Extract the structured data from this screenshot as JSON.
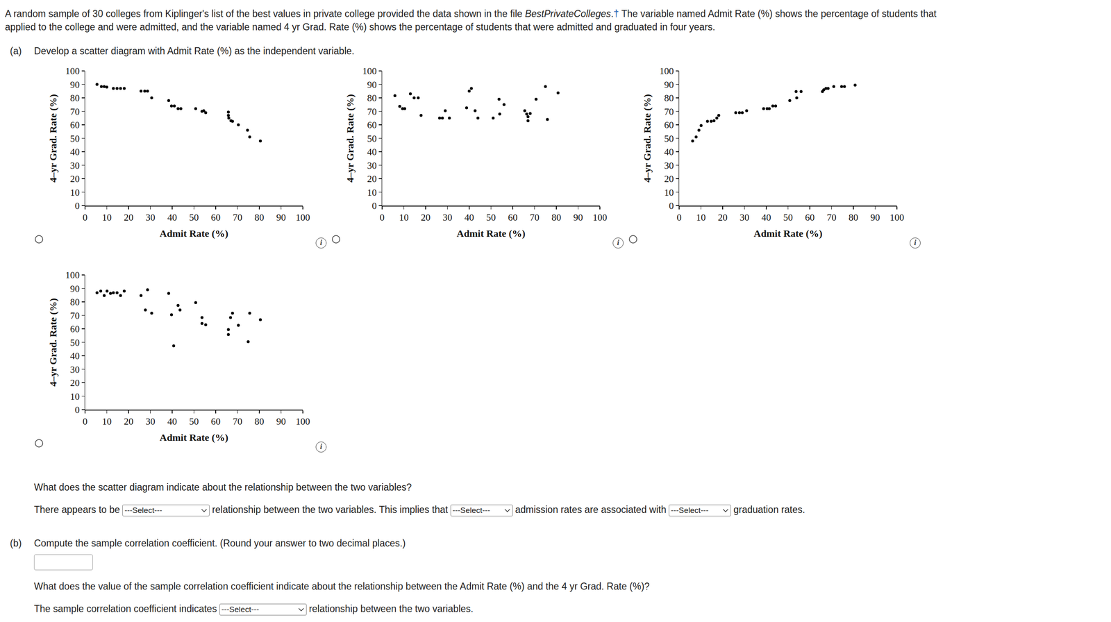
{
  "intro": {
    "line1_before": "A random sample of 30 colleges from Kiplinger's list of the best values in private college provided the data shown in the file ",
    "file": "BestPrivateColleges",
    "period": ".",
    "dagger": "†",
    "line1_after": " The variable named Admit Rate (%) shows the percentage of students that",
    "line2": "applied to the college and were admitted, and the variable named 4 yr Grad. Rate (%) shows the percentage of students that were admitted and graduated in four years."
  },
  "part_a": {
    "label": "(a)",
    "prompt": "Develop a scatter diagram with Admit Rate (%) as the independent variable.",
    "question": "What does the scatter diagram indicate about the relationship between the two variables?",
    "answer_parts": [
      "There appears to be",
      "relationship between the two variables. This implies that",
      "admission rates are associated with",
      "graduation rates."
    ]
  },
  "part_b": {
    "label": "(b)",
    "prompt": "Compute the sample correlation coefficient. (Round your answer to two decimal places.)",
    "question": "What does the value of the sample correlation coefficient indicate about the relationship between the Admit Rate (%) and the 4 yr Grad. Rate (%)?",
    "answer_parts": [
      "The sample correlation coefficient indicates",
      "relationship between the two variables."
    ]
  },
  "select_placeholder": "---Select---",
  "info_icon": "i",
  "chart_data": [
    {
      "type": "scatter",
      "x_label": "Admit Rate (%)",
      "y_label": "4–yr Grad. Rate (%)",
      "x": [
        5.5,
        7.5,
        8.8,
        10,
        13,
        14.7,
        16.3,
        18,
        25.7,
        27.4,
        28.7,
        30.6,
        38.4,
        39.7,
        41,
        42.7,
        44,
        50.8,
        53.7,
        54.5,
        55.4,
        65.8,
        65.8,
        66,
        67,
        67.7,
        70.4,
        74.6,
        75.6,
        80.5
      ],
      "values": [
        90,
        88.4,
        88.4,
        88,
        87,
        87,
        87,
        87,
        85,
        85,
        85,
        80,
        78,
        74,
        74,
        72,
        72,
        72,
        70,
        70.5,
        69,
        69.5,
        67,
        65,
        63,
        62.6,
        60,
        56,
        51,
        48
      ],
      "xlim": [
        0,
        100
      ],
      "ylim": [
        0,
        100
      ],
      "xticks": [
        0,
        10,
        20,
        30,
        40,
        50,
        60,
        70,
        80,
        90,
        100
      ],
      "yticks": [
        0,
        10,
        20,
        30,
        40,
        50,
        60,
        70,
        80,
        90,
        100
      ],
      "color": "#000000",
      "marker": "circle",
      "grid": false
    },
    {
      "type": "scatter",
      "x_label": "Admit Rate (%)",
      "y_label": "4–yr Grad. Rate (%)",
      "x": [
        5.9,
        8.1,
        9.4,
        10.4,
        13,
        14.7,
        16.6,
        17.9,
        26.4,
        27.7,
        29,
        30.9,
        38.8,
        40,
        41,
        42.7,
        44,
        51,
        53.7,
        54,
        56,
        65.5,
        66.4,
        67,
        67,
        68,
        70.7,
        75,
        75.9,
        80.8
      ],
      "values": [
        81.6,
        73.7,
        72,
        72,
        83,
        80,
        80,
        67,
        65,
        65,
        70.5,
        65,
        72.6,
        85,
        87,
        70.5,
        65,
        65,
        79,
        68,
        75,
        70.5,
        68,
        63,
        66,
        68.4,
        79,
        88.4,
        64,
        83.7
      ],
      "xlim": [
        0,
        100
      ],
      "ylim": [
        0,
        100
      ],
      "xticks": [
        0,
        10,
        20,
        30,
        40,
        50,
        60,
        70,
        80,
        90,
        100
      ],
      "yticks": [
        0,
        10,
        20,
        30,
        40,
        50,
        60,
        70,
        80,
        90,
        100
      ],
      "color": "#000000",
      "marker": "circle",
      "grid": false
    },
    {
      "type": "scatter",
      "x_label": "Admit Rate (%)",
      "y_label": "4–yr Grad. Rate (%)",
      "x": [
        6.2,
        7.8,
        9.1,
        10.1,
        13,
        14.7,
        16,
        17.3,
        18.2,
        26,
        27.7,
        29,
        31,
        38.8,
        40.4,
        41.4,
        43,
        44.3,
        50.8,
        54,
        53.7,
        56,
        65.8,
        66.4,
        67.4,
        68.4,
        71,
        74.6,
        75.9,
        80.8
      ],
      "values": [
        48,
        51,
        56,
        59.5,
        62.6,
        62.6,
        63,
        65,
        67,
        69,
        69,
        69,
        70.5,
        72,
        72,
        72,
        74,
        74,
        78,
        80,
        84.7,
        84.7,
        84.7,
        86,
        87,
        87,
        88.4,
        88.4,
        88.4,
        89.5
      ],
      "xlim": [
        0,
        100
      ],
      "ylim": [
        0,
        100
      ],
      "xticks": [
        0,
        10,
        20,
        30,
        40,
        50,
        60,
        70,
        80,
        90,
        100
      ],
      "yticks": [
        0,
        10,
        20,
        30,
        40,
        50,
        60,
        70,
        80,
        90,
        100
      ],
      "color": "#000000",
      "marker": "circle",
      "grid": false
    },
    {
      "type": "scatter",
      "x_label": "Admit Rate (%)",
      "y_label": "4–yr Grad. Rate (%)",
      "x": [
        5.5,
        7.2,
        8.8,
        10.1,
        11.7,
        13,
        14.7,
        16.3,
        18,
        25.7,
        28.7,
        27.7,
        30.6,
        38.4,
        39.7,
        40.7,
        42.7,
        43.6,
        50.8,
        53.7,
        53.7,
        55.4,
        65.8,
        65.8,
        66.8,
        67.7,
        70.4,
        74.9,
        75.6,
        80.5
      ],
      "values": [
        86.8,
        88,
        84.7,
        88,
        86.3,
        86.8,
        86.8,
        84.7,
        88,
        84.7,
        89,
        74,
        71.6,
        86.3,
        70.5,
        47.4,
        77.4,
        74,
        79.5,
        68.4,
        64,
        63,
        59.5,
        55.8,
        68.4,
        71.6,
        62.6,
        50.5,
        71.6,
        66.8
      ],
      "xlim": [
        0,
        100
      ],
      "ylim": [
        0,
        100
      ],
      "xticks": [
        0,
        10,
        20,
        30,
        40,
        50,
        60,
        70,
        80,
        90,
        100
      ],
      "yticks": [
        0,
        10,
        20,
        30,
        40,
        50,
        60,
        70,
        80,
        90,
        100
      ],
      "color": "#000000",
      "marker": "circle",
      "grid": false
    }
  ]
}
